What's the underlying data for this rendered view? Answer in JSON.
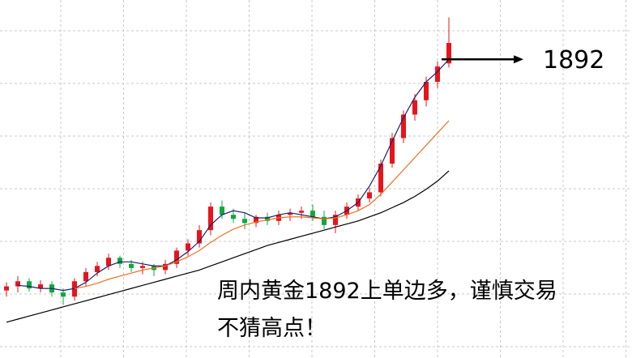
{
  "chart_data": {
    "type": "candlestick",
    "categories": [
      null,
      null,
      null,
      null,
      null,
      null,
      null,
      null,
      null,
      null,
      null,
      null,
      null,
      null,
      null,
      null,
      null,
      null,
      null,
      null,
      null,
      null,
      null,
      null,
      null,
      null,
      null,
      null,
      null,
      null,
      null,
      null,
      null,
      null,
      null,
      null,
      null,
      null,
      null,
      null
    ],
    "open": [
      1666,
      1670,
      1675,
      1668,
      1672,
      1664,
      1660,
      1675,
      1684,
      1690,
      1698,
      1692,
      1688,
      1690,
      1686,
      1692,
      1705,
      1712,
      1725,
      1748,
      1740,
      1736,
      1732,
      1738,
      1734,
      1740,
      1742,
      1744,
      1738,
      1730,
      1740,
      1748,
      1756,
      1762,
      1790,
      1815,
      1838,
      1852,
      1870,
      1888
    ],
    "high": [
      1674,
      1680,
      1678,
      1676,
      1675,
      1668,
      1678,
      1688,
      1694,
      1702,
      1700,
      1696,
      1694,
      1692,
      1696,
      1708,
      1716,
      1730,
      1752,
      1754,
      1746,
      1742,
      1740,
      1742,
      1744,
      1746,
      1748,
      1750,
      1744,
      1744,
      1752,
      1760,
      1766,
      1794,
      1820,
      1842,
      1858,
      1875,
      1890,
      1933
    ],
    "low": [
      1660,
      1664,
      1665,
      1664,
      1660,
      1652,
      1656,
      1670,
      1680,
      1686,
      1688,
      1684,
      1682,
      1680,
      1682,
      1688,
      1700,
      1708,
      1720,
      1736,
      1732,
      1726,
      1728,
      1730,
      1730,
      1734,
      1736,
      1734,
      1726,
      1722,
      1736,
      1744,
      1752,
      1758,
      1786,
      1810,
      1832,
      1846,
      1864,
      1884
    ],
    "close": [
      1670,
      1675,
      1668,
      1672,
      1664,
      1660,
      1675,
      1684,
      1690,
      1698,
      1692,
      1688,
      1690,
      1686,
      1692,
      1705,
      1712,
      1725,
      1748,
      1740,
      1736,
      1732,
      1738,
      1734,
      1740,
      1742,
      1744,
      1738,
      1730,
      1740,
      1748,
      1756,
      1762,
      1790,
      1815,
      1838,
      1852,
      1870,
      1885,
      1908
    ],
    "up_color": "#e8141b",
    "down_color": "#0fa83c",
    "lines": [
      {
        "color": "#1b1f6e",
        "values": [
          null,
          1671,
          1670,
          1668,
          1668,
          1666,
          1668,
          1674,
          1683,
          1690,
          1694,
          1694,
          1692,
          1690,
          1690,
          1696,
          1704,
          1714,
          1730,
          1740,
          1744,
          1742,
          1737,
          1737,
          1740,
          1742,
          1740,
          1738,
          1736,
          1738,
          1744,
          1752,
          1768,
          1788,
          1812,
          1835,
          1855,
          1870,
          1880,
          1892
        ]
      },
      {
        "color": "#f07020",
        "values": [
          null,
          null,
          null,
          null,
          null,
          null,
          1668,
          1670,
          1673,
          1677,
          1680,
          1683,
          1686,
          1688,
          1690,
          1694,
          1699,
          1705,
          1713,
          1720,
          1726,
          1730,
          1733,
          1735,
          1737,
          1738,
          1738,
          1737,
          1736,
          1737,
          1740,
          1744,
          1750,
          1760,
          1772,
          1784,
          1796,
          1808,
          1820,
          1832
        ]
      },
      {
        "color": "#000000",
        "values": [
          1635,
          1638,
          1641,
          1644,
          1647,
          1650,
          1653,
          1656,
          1659,
          1662,
          1665,
          1668,
          1671,
          1674,
          1677,
          1680,
          1683,
          1686,
          1690,
          1694,
          1698,
          1702,
          1706,
          1710,
          1713,
          1716,
          1719,
          1722,
          1725,
          1728,
          1731,
          1734,
          1738,
          1742,
          1747,
          1752,
          1758,
          1765,
          1773,
          1783
        ]
      }
    ],
    "ylim": [
      1600,
      1950
    ],
    "grid": true,
    "annotation": {
      "value": 1892
    },
    "notes": [
      "周内黄金1892上单边多，谨慎交易",
      "不猜高点！"
    ]
  }
}
